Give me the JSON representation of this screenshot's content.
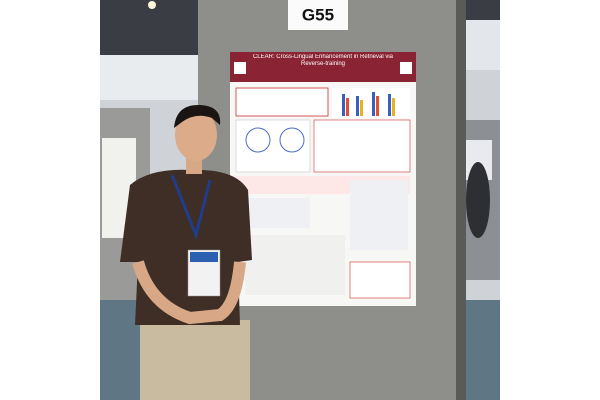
{
  "sign": {
    "label": "G55"
  },
  "poster": {
    "title": "CLEAR: Cross-Lingual Enhancement in Retrieval via Reverse-training"
  }
}
